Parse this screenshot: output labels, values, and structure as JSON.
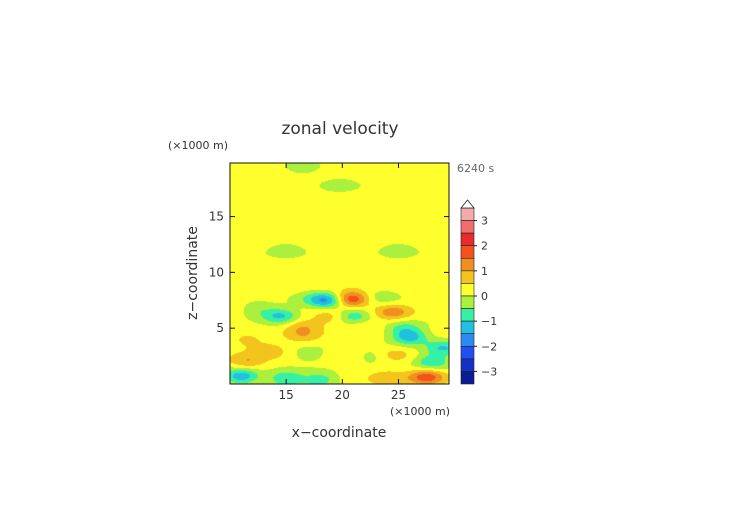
{
  "chart_data": {
    "type": "heatmap",
    "title": "zonal velocity",
    "xlabel": "x−coordinate",
    "ylabel": "z−coordinate",
    "x_unit": "(×1000 m)",
    "y_unit": "(×1000 m)",
    "time_label": "6240 s",
    "xlim": [
      10,
      29.5
    ],
    "ylim": [
      0,
      19.8
    ],
    "x_ticks": [
      "15",
      "20",
      "25"
    ],
    "y_ticks": [
      "5",
      "10",
      "15"
    ],
    "colorbar": {
      "tick_labels": [
        "3",
        "2",
        "1",
        "0",
        "−1",
        "−2",
        "−3"
      ],
      "levels": [
        3.5,
        3.0,
        2.5,
        2.0,
        1.5,
        1.0,
        0.5,
        0.0,
        -0.5,
        -1.0,
        -1.5,
        -2.0,
        -2.5,
        -3.0,
        -3.5
      ],
      "colors": [
        "#f2aaaa",
        "#f06e6e",
        "#e82a2a",
        "#f3531a",
        "#f08f20",
        "#f3c31e",
        "#ffff2e",
        "#aaf03c",
        "#36f0a6",
        "#22c0e0",
        "#2a8cf2",
        "#2050f0",
        "#1430c8",
        "#0b1a96"
      ],
      "extend": "max"
    },
    "background_value": 0.2,
    "features": [
      {
        "x": 16.5,
        "z": 19.3,
        "value": -0.2
      },
      {
        "x": 25.0,
        "z": 18.3,
        "value": 0.2
      },
      {
        "x": 19.8,
        "z": 17.8,
        "value": -0.25
      },
      {
        "x": 15.0,
        "z": 16.7,
        "value": 0.15
      },
      {
        "x": 25.0,
        "z": 16.7,
        "value": 0.15
      },
      {
        "x": 20.8,
        "z": 16.4,
        "value": 0.3
      },
      {
        "x": 15.0,
        "z": 14.5,
        "value": 0.15
      },
      {
        "x": 25.0,
        "z": 14.5,
        "value": 0.15
      },
      {
        "x": 15.0,
        "z": 12.0,
        "value": -0.3
      },
      {
        "x": 25.0,
        "z": 12.0,
        "value": -0.3
      },
      {
        "x": 15.0,
        "z": 9.5,
        "value": 0.2
      },
      {
        "x": 25.0,
        "z": 9.5,
        "value": 0.2
      },
      {
        "x": 17.2,
        "z": 7.6,
        "value": -0.3
      },
      {
        "x": 23.5,
        "z": 7.8,
        "value": -0.3
      },
      {
        "x": 12.5,
        "z": 6.6,
        "value": -0.3
      },
      {
        "x": 18.8,
        "z": 7.5,
        "value": -1.6
      },
      {
        "x": 20.7,
        "z": 7.6,
        "value": 2.2
      },
      {
        "x": 14.5,
        "z": 6.1,
        "value": -1.1
      },
      {
        "x": 24.5,
        "z": 6.4,
        "value": 1.3
      },
      {
        "x": 19.0,
        "z": 6.0,
        "value": 0.8
      },
      {
        "x": 21.0,
        "z": 6.1,
        "value": -0.9
      },
      {
        "x": 16.5,
        "z": 5.2,
        "value": 0.9
      },
      {
        "x": 25.5,
        "z": 5.0,
        "value": -0.6
      },
      {
        "x": 22.0,
        "z": 5.3,
        "value": 0.5
      },
      {
        "x": 16.5,
        "z": 4.3,
        "value": 0.8
      },
      {
        "x": 26.0,
        "z": 4.2,
        "value": -1.2
      },
      {
        "x": 11.5,
        "z": 3.8,
        "value": 0.6
      },
      {
        "x": 13.5,
        "z": 3.0,
        "value": 0.8
      },
      {
        "x": 24.5,
        "z": 2.6,
        "value": 0.8
      },
      {
        "x": 29.0,
        "z": 3.2,
        "value": -1.0
      },
      {
        "x": 17.0,
        "z": 2.7,
        "value": -0.3
      },
      {
        "x": 23.0,
        "z": 2.5,
        "value": -0.3
      },
      {
        "x": 11.5,
        "z": 2.0,
        "value": 1.0
      },
      {
        "x": 28.0,
        "z": 2.0,
        "value": -0.9
      },
      {
        "x": 11.0,
        "z": 0.7,
        "value": -1.4
      },
      {
        "x": 15.0,
        "z": 0.5,
        "value": -1.0
      },
      {
        "x": 18.0,
        "z": 0.4,
        "value": -0.8
      },
      {
        "x": 24.0,
        "z": 0.5,
        "value": 0.9
      },
      {
        "x": 27.5,
        "z": 0.6,
        "value": 1.8
      }
    ]
  }
}
